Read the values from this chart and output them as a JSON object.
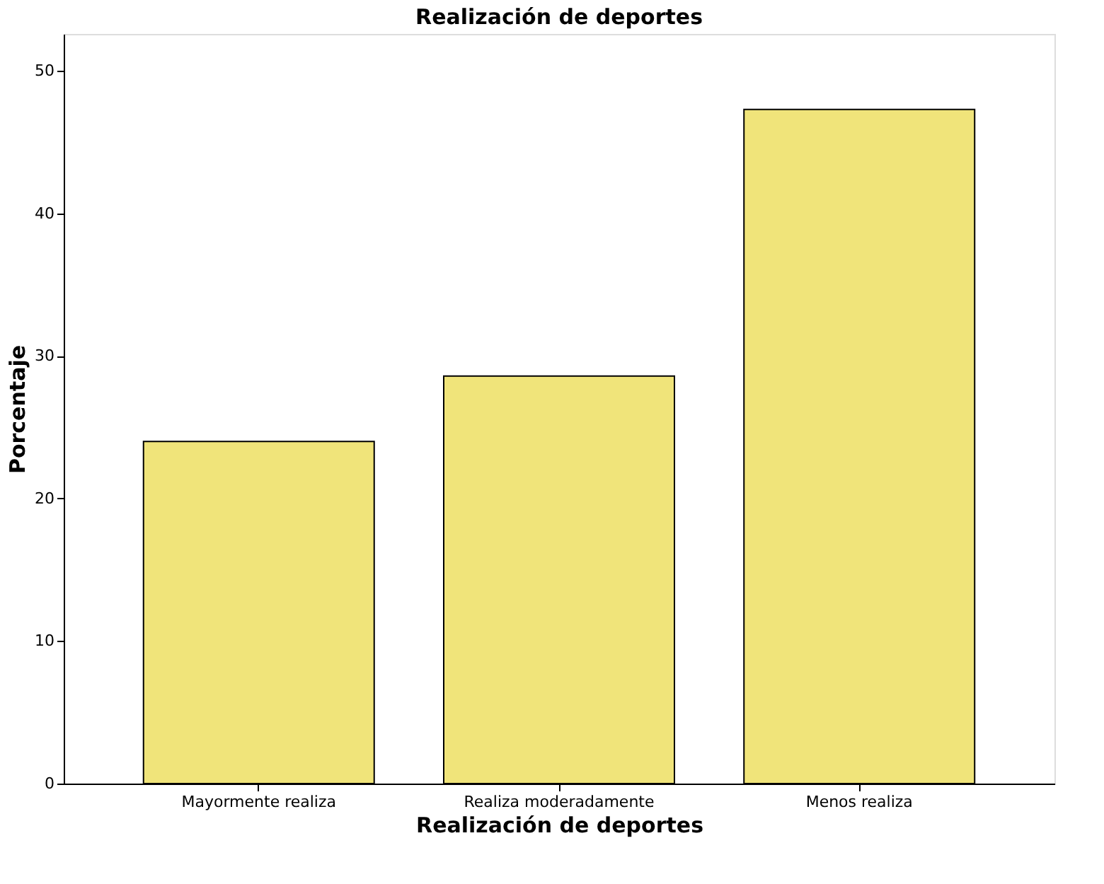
{
  "chart_data": {
    "type": "bar",
    "title": "Realización de deportes",
    "xlabel": "Realización de deportes",
    "ylabel": "Porcentaje",
    "categories": [
      "Mayormente realiza",
      "Realiza moderadamente",
      "Menos realiza"
    ],
    "values": [
      24.0,
      28.6,
      47.3
    ],
    "color": "#f0e47a",
    "ylim": [
      0,
      52.6
    ],
    "yticks": [
      0,
      10,
      20,
      30,
      40,
      50
    ],
    "grid": false
  }
}
